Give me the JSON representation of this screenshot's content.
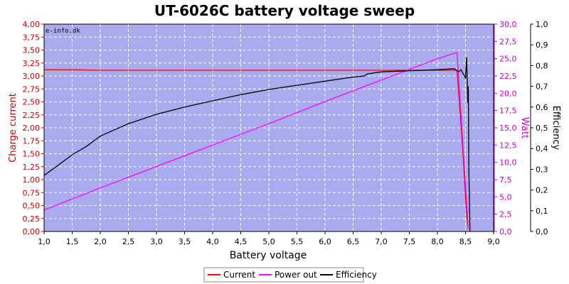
{
  "chart_data": {
    "type": "line",
    "title": "UT-6026C battery voltage sweep",
    "watermark": "e-info.dk",
    "xlabel": "Battery voltage",
    "ylabel_left": "Charge current",
    "ylabel_right1": "Watt",
    "ylabel_right2": "Efficiency",
    "xlim": [
      1.0,
      9.0
    ],
    "ylim_left": [
      0,
      4.0
    ],
    "ylim_right1": [
      0,
      30.0
    ],
    "ylim_right2": [
      0,
      1.0
    ],
    "x_ticks": [
      "1,0",
      "1,5",
      "2,0",
      "2,5",
      "3,0",
      "3,5",
      "4,0",
      "4,5",
      "5,0",
      "5,5",
      "6,0",
      "6,5",
      "7,0",
      "7,5",
      "8,0",
      "8,5",
      "9,0"
    ],
    "y_left_ticks": [
      "0,00",
      "0,25",
      "0,50",
      "0,75",
      "1,00",
      "1,25",
      "1,50",
      "1,75",
      "2,00",
      "2,25",
      "2,50",
      "2,75",
      "3,00",
      "3,25",
      "3,50",
      "3,75",
      "4,00"
    ],
    "y_right1_ticks": [
      "0,0",
      "2,5",
      "5,0",
      "7,5",
      "10,0",
      "12,5",
      "15,0",
      "17,5",
      "20,0",
      "22,5",
      "25,0",
      "27,5",
      "30,0"
    ],
    "y_right2_ticks": [
      "0,0",
      "0,1",
      "0,2",
      "0,3",
      "0,4",
      "0,5",
      "0,6",
      "0,7",
      "0,8",
      "0,9",
      "1,0"
    ],
    "grid": true,
    "legend_position": "bottom-center",
    "colors": {
      "plot_bg": "#aaaaee",
      "current": "#ff0000",
      "power": "#ff00ff",
      "efficiency": "#000000",
      "left_axis": "#cc0000",
      "right1_axis": "#cc00cc",
      "right2_axis": "#000000"
    },
    "series": [
      {
        "name": "Current",
        "axis": "left",
        "x": [
          1.0,
          1.5,
          2.0,
          2.5,
          3.0,
          4.0,
          5.0,
          6.0,
          7.0,
          8.0,
          8.35,
          8.45,
          8.52,
          8.55
        ],
        "y": [
          3.12,
          3.12,
          3.11,
          3.11,
          3.11,
          3.11,
          3.11,
          3.11,
          3.11,
          3.11,
          3.11,
          1.6,
          0.3,
          0.05
        ]
      },
      {
        "name": "Power out",
        "axis": "right1",
        "x": [
          1.0,
          2.0,
          3.0,
          4.0,
          5.0,
          6.0,
          7.0,
          8.0,
          8.35,
          8.45,
          8.55
        ],
        "y": [
          3.1,
          6.3,
          9.4,
          12.5,
          15.6,
          18.8,
          21.9,
          25.0,
          25.9,
          13.0,
          0.3
        ]
      },
      {
        "name": "Efficiency",
        "axis": "right2",
        "x": [
          1.0,
          1.25,
          1.5,
          1.75,
          2.0,
          2.5,
          3.0,
          3.5,
          4.0,
          4.5,
          5.0,
          5.5,
          6.0,
          6.5,
          6.7,
          6.75,
          7.0,
          7.5,
          8.0,
          8.3,
          8.38,
          8.42,
          8.46,
          8.5,
          8.52,
          8.54,
          8.55,
          8.56,
          8.58
        ],
        "y": [
          0.27,
          0.32,
          0.37,
          0.41,
          0.46,
          0.52,
          0.565,
          0.6,
          0.63,
          0.66,
          0.685,
          0.705,
          0.725,
          0.745,
          0.75,
          0.76,
          0.77,
          0.775,
          0.78,
          0.785,
          0.77,
          0.78,
          0.76,
          0.74,
          0.84,
          0.62,
          0.7,
          0.3,
          0.0
        ]
      }
    ]
  }
}
